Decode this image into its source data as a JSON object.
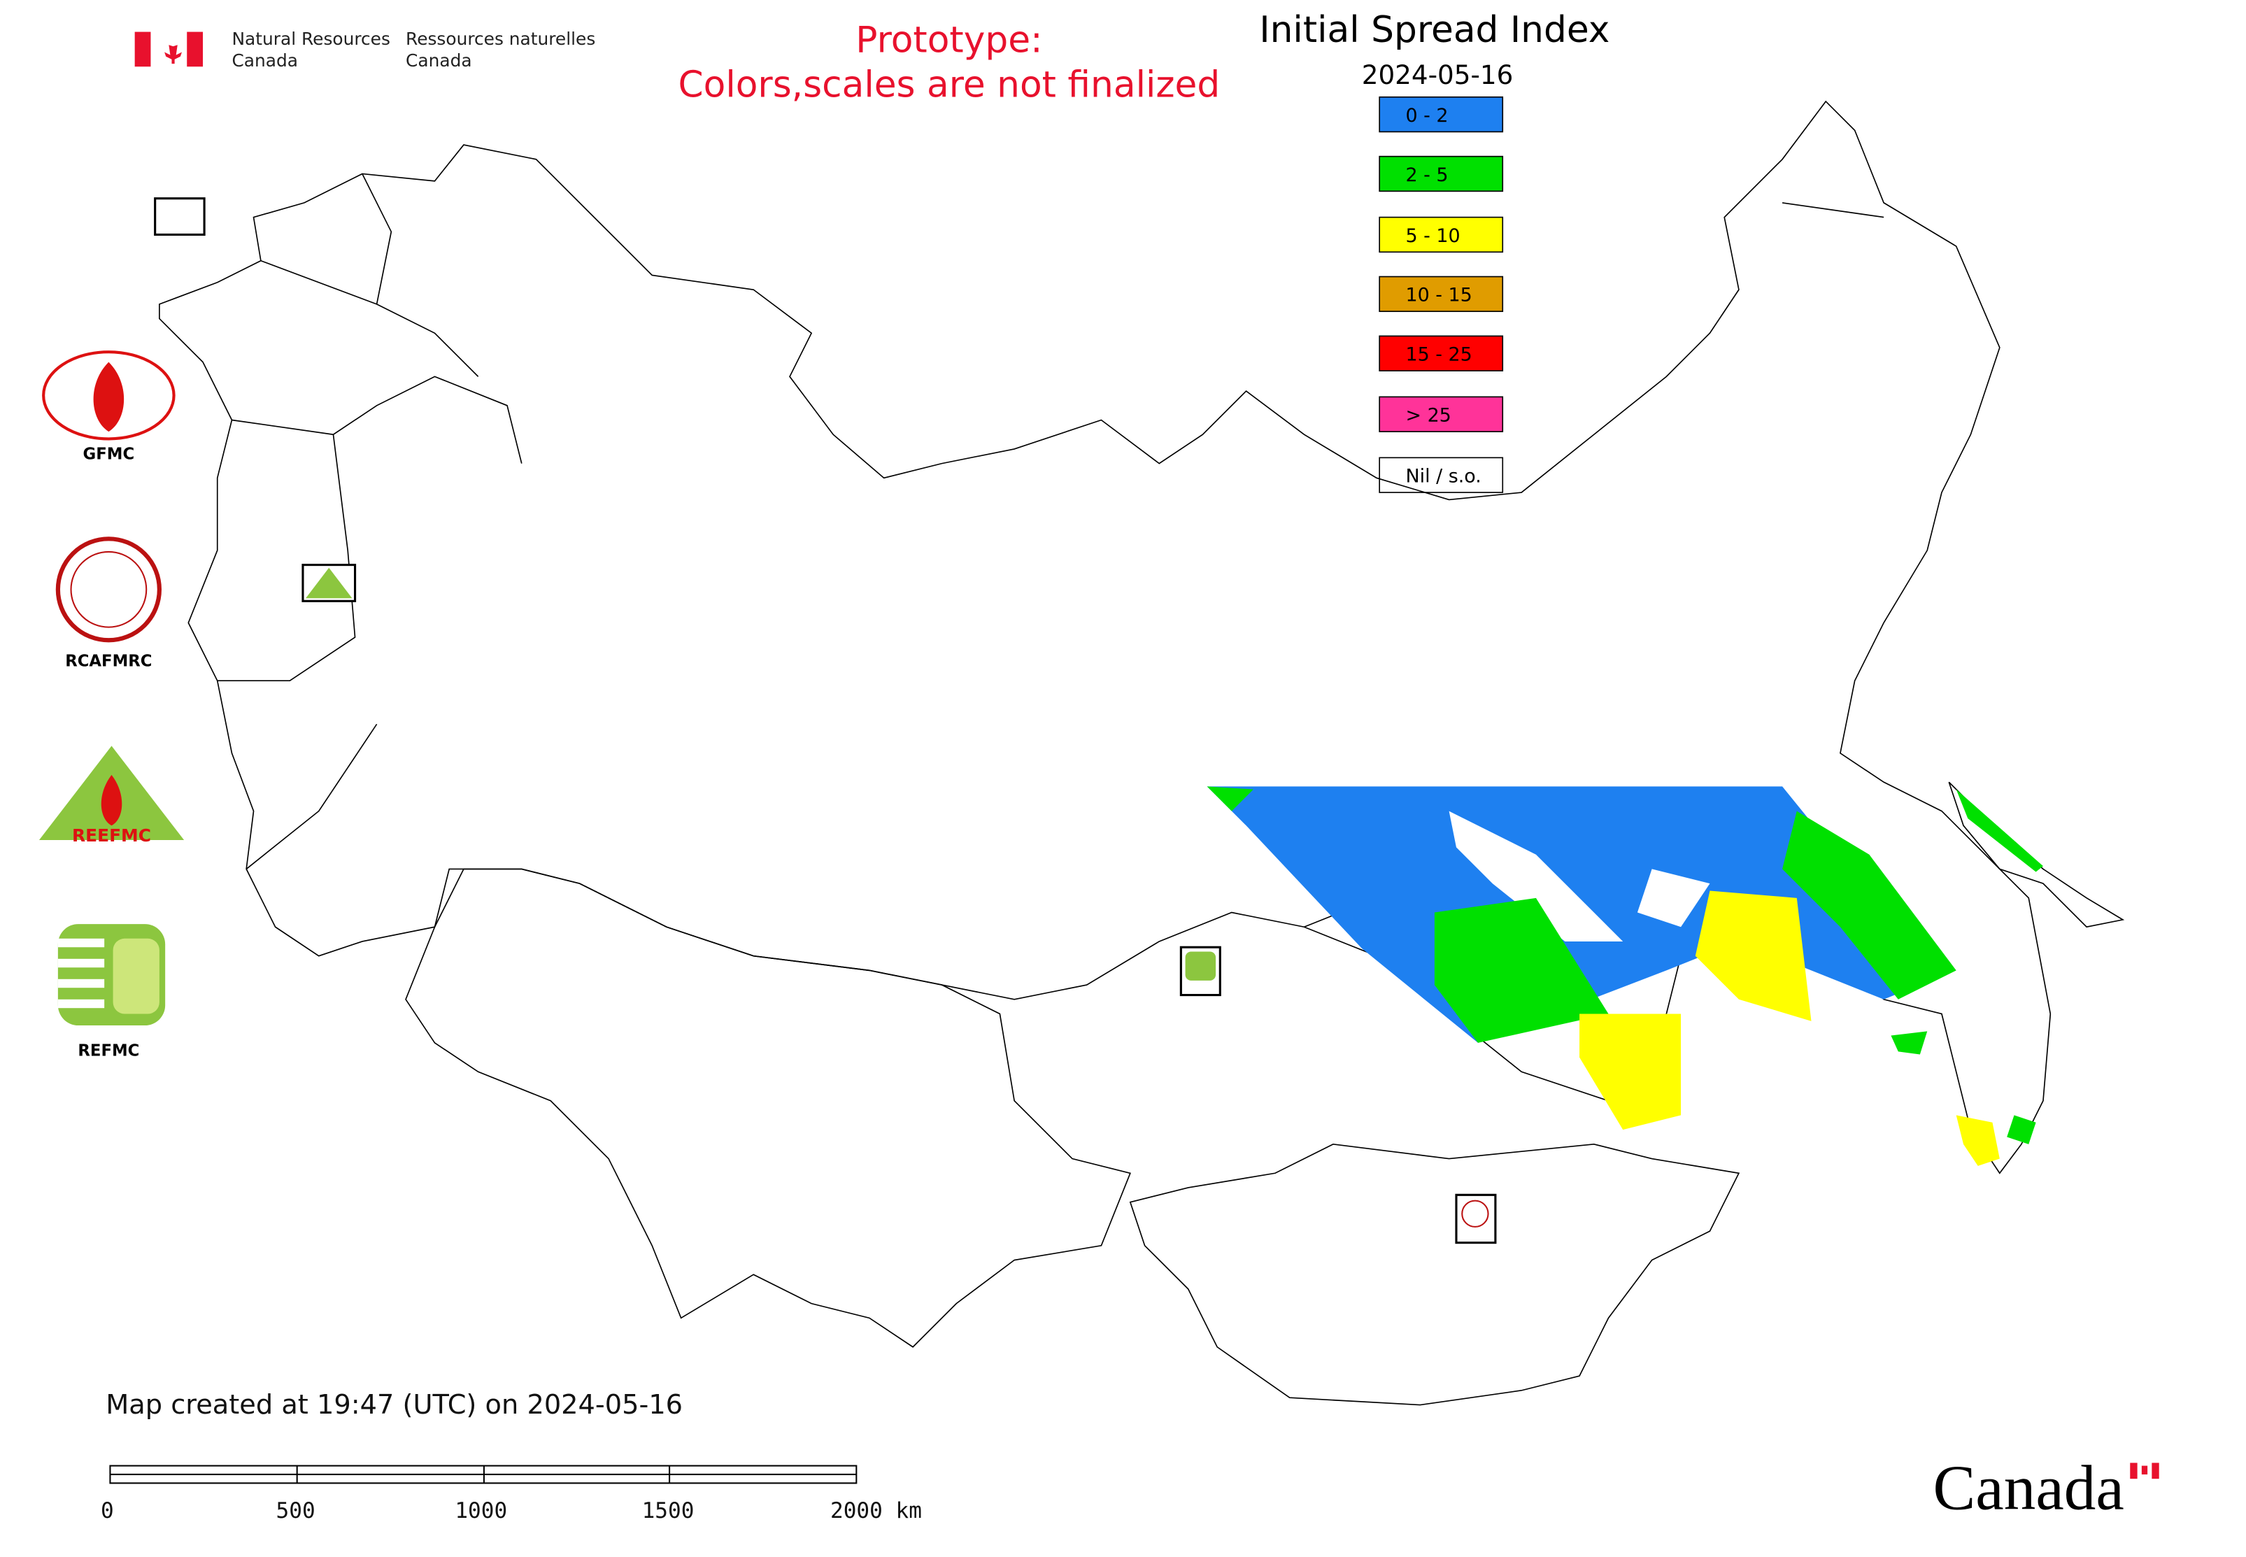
{
  "header": {
    "org_en": [
      "Natural Resources",
      "Canada"
    ],
    "org_fr": [
      "Ressources naturelles",
      "Canada"
    ]
  },
  "notice": [
    "Prototype:",
    "Colors,scales are not finalized"
  ],
  "title": "Initial Spread Index",
  "date": "2024-05-16",
  "legend": [
    {
      "label": "0 - 2",
      "color": "#1e80f0"
    },
    {
      "label": "2 - 5",
      "color": "#00e000"
    },
    {
      "label": "5 - 10",
      "color": "#ffff00"
    },
    {
      "label": "10 - 15",
      "color": "#e09c00"
    },
    {
      "label": "15 - 25",
      "color": "#ff0000"
    },
    {
      "label": "> 25",
      "color": "#ff3399"
    },
    {
      "label": "Nil / s.o.",
      "color": "#ffffff"
    }
  ],
  "logos": [
    "GFMC",
    "RCAFMRC",
    "REEFMC",
    "REFMC"
  ],
  "footer": "Map created at 19:47 (UTC) on 2024-05-16",
  "scale_bar": [
    "0",
    "500",
    "1000",
    "1500",
    "2000 km"
  ],
  "wordmark": "Canada"
}
